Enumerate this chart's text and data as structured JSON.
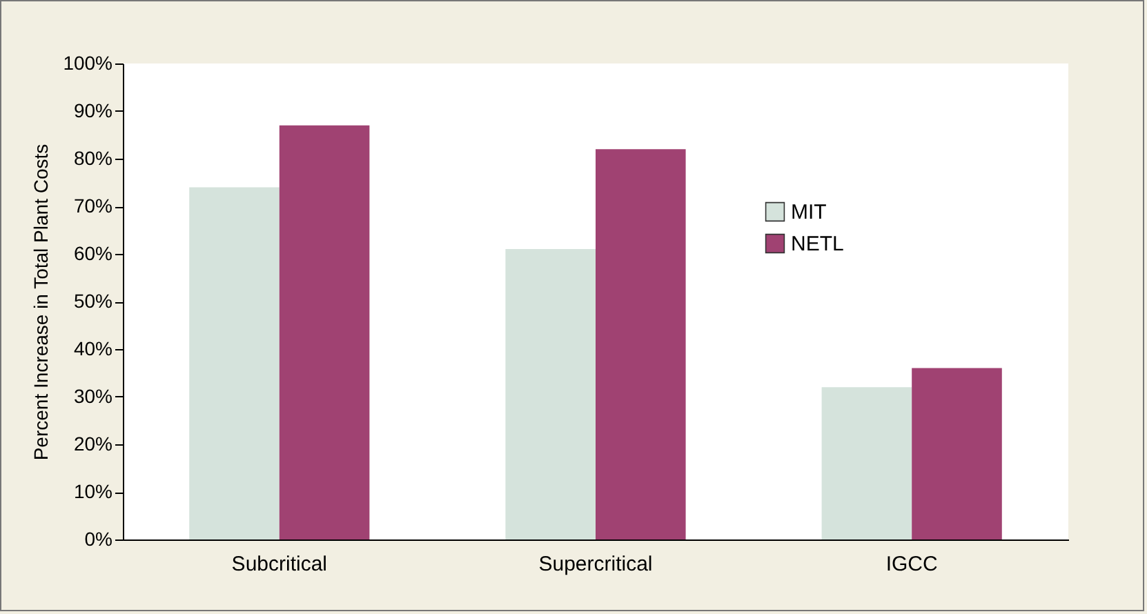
{
  "chart_data": {
    "type": "bar",
    "ylabel": "Percent Increase in Total Plant Costs",
    "categories": [
      "Subcritical",
      "Supercritical",
      "IGCC"
    ],
    "series": [
      {
        "name": "MIT",
        "color": "#d5e3dc",
        "values": [
          74,
          61,
          32
        ]
      },
      {
        "name": "NETL",
        "color": "#a04272",
        "values": [
          87,
          82,
          36
        ]
      }
    ],
    "ylim": [
      0,
      100
    ],
    "yticks": [
      {
        "value": 0,
        "label": "0%"
      },
      {
        "value": 10,
        "label": "10%"
      },
      {
        "value": 20,
        "label": "20%"
      },
      {
        "value": 30,
        "label": "30%"
      },
      {
        "value": 40,
        "label": "40%"
      },
      {
        "value": 50,
        "label": "50%"
      },
      {
        "value": 60,
        "label": "60%"
      },
      {
        "value": 70,
        "label": "70%"
      },
      {
        "value": 80,
        "label": "80%"
      },
      {
        "value": 90,
        "label": "90%"
      },
      {
        "value": 100,
        "label": "100%"
      }
    ],
    "grid": false,
    "legend": "right"
  }
}
